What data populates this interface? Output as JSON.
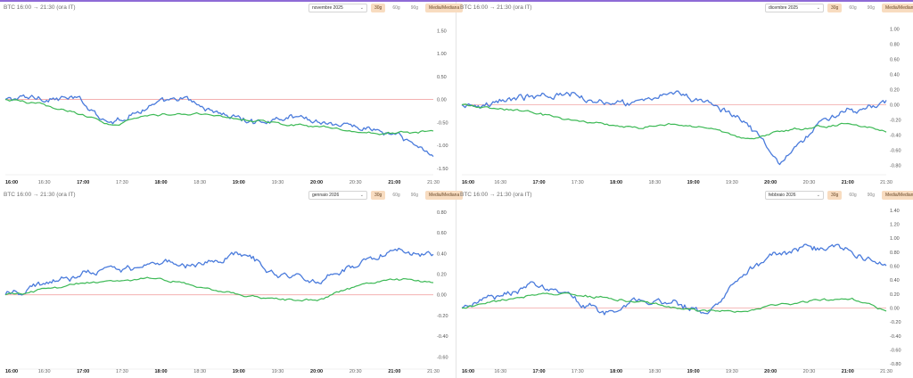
{
  "colors": {
    "btc": "#4a7bdc",
    "avg": "#3cb955",
    "zero": "#f2a5a5",
    "accent_top": "#8e6bd6"
  },
  "panels": [
    {
      "title": "BTC 16:00 → 21:30 (ora IT)",
      "month_select": "novembre 2025",
      "buttons": [
        "30g",
        "60g",
        "90g",
        "Media/Mediana"
      ],
      "active_button": "30g",
      "y_ticks": [
        "1.50",
        "1.00",
        "0.50",
        "0.00",
        "-0.50",
        "-1.00",
        "-1.50"
      ]
    },
    {
      "title": "BTC 16:00 → 21:30 (ora IT)",
      "month_select": "dicembre 2025",
      "buttons": [
        "30g",
        "60g",
        "90g",
        "Media/Mediana"
      ],
      "active_button": "30g",
      "y_ticks": [
        "1.00",
        "0.80",
        "0.60",
        "0.40",
        "0.20",
        "0.00",
        "-0.20",
        "-0.40",
        "-0.60",
        "-0.80"
      ]
    },
    {
      "title": "BTC 16:00 → 21:30 (ora IT)",
      "month_select": "gennaio 2026",
      "buttons": [
        "30g",
        "60g",
        "90g",
        "Media/Mediana"
      ],
      "active_button": "30g",
      "y_ticks": [
        "0.80",
        "0.60",
        "0.40",
        "0.20",
        "0.00",
        "-0.20",
        "-0.40",
        "-0.60"
      ]
    },
    {
      "title": "BTC 16:00 → 21:30 (ora IT)",
      "month_select": "febbraio 2026",
      "buttons": [
        "30g",
        "60g",
        "90g",
        "Media/Mediana"
      ],
      "active_button": "30g",
      "y_ticks": [
        "1.40",
        "1.20",
        "1.00",
        "0.80",
        "0.60",
        "0.40",
        "0.20",
        "0.00",
        "-0.20",
        "-0.40",
        "-0.60",
        "-0.80"
      ]
    }
  ],
  "x_ticks": [
    "16:00",
    "16:30",
    "17:00",
    "17:30",
    "18:00",
    "18:30",
    "19:00",
    "19:30",
    "20:00",
    "20:30",
    "21:00",
    "21:30"
  ],
  "chart_data": [
    {
      "type": "line",
      "x": [
        "16:00",
        "16:30",
        "17:00",
        "17:30",
        "18:00",
        "18:30",
        "19:00",
        "19:30",
        "20:00",
        "20:30",
        "21:00",
        "21:15",
        "21:30"
      ],
      "ylim": [
        -1.6,
        1.7
      ],
      "series": [
        {
          "values": [
            0.0,
            0.05,
            0.0,
            -0.5,
            -0.15,
            0.0,
            -0.3,
            -0.5,
            -0.35,
            -0.5,
            -0.6,
            -0.8,
            -1.2
          ]
        },
        {
          "values": [
            0.0,
            -0.1,
            -0.3,
            -0.55,
            -0.35,
            -0.3,
            -0.35,
            -0.45,
            -0.55,
            -0.6,
            -0.7,
            -0.72,
            -0.7
          ]
        }
      ]
    },
    {
      "type": "line",
      "x": [
        "16:00",
        "16:30",
        "17:00",
        "17:30",
        "18:00",
        "18:30",
        "19:00",
        "19:30",
        "20:00",
        "20:15",
        "20:30",
        "21:00",
        "21:30"
      ],
      "ylim": [
        -0.9,
        1.1
      ],
      "series": [
        {
          "values": [
            0.0,
            0.05,
            0.1,
            0.15,
            0.05,
            0.0,
            0.15,
            0.05,
            -0.2,
            -0.75,
            -0.3,
            -0.05,
            0.0
          ]
        },
        {
          "values": [
            0.0,
            -0.05,
            -0.1,
            -0.2,
            -0.25,
            -0.3,
            -0.25,
            -0.3,
            -0.45,
            -0.35,
            -0.3,
            -0.25,
            -0.35
          ]
        }
      ]
    },
    {
      "type": "line",
      "x": [
        "16:00",
        "16:30",
        "17:00",
        "17:30",
        "18:00",
        "18:30",
        "19:00",
        "19:30",
        "20:00",
        "20:30",
        "21:00",
        "21:30"
      ],
      "ylim": [
        -0.7,
        0.85
      ],
      "series": [
        {
          "values": [
            0.0,
            0.1,
            0.2,
            0.25,
            0.3,
            0.3,
            0.4,
            0.2,
            0.15,
            0.25,
            0.45,
            0.4
          ]
        },
        {
          "values": [
            0.0,
            0.05,
            0.1,
            0.15,
            0.15,
            0.08,
            0.0,
            -0.05,
            -0.05,
            0.08,
            0.15,
            0.12
          ]
        }
      ]
    },
    {
      "type": "line",
      "x": [
        "16:00",
        "16:30",
        "17:00",
        "17:30",
        "18:00",
        "18:30",
        "19:00",
        "19:15",
        "19:30",
        "20:00",
        "20:30",
        "21:00",
        "21:30"
      ],
      "ylim": [
        -0.85,
        1.45
      ],
      "series": [
        {
          "values": [
            0.0,
            0.15,
            0.35,
            0.15,
            -0.1,
            0.1,
            0.05,
            -0.05,
            0.55,
            0.8,
            0.85,
            0.8,
            0.65
          ]
        },
        {
          "values": [
            0.0,
            0.1,
            0.2,
            0.2,
            0.15,
            0.1,
            0.0,
            -0.05,
            -0.05,
            0.05,
            0.1,
            0.15,
            -0.05
          ]
        }
      ]
    }
  ]
}
